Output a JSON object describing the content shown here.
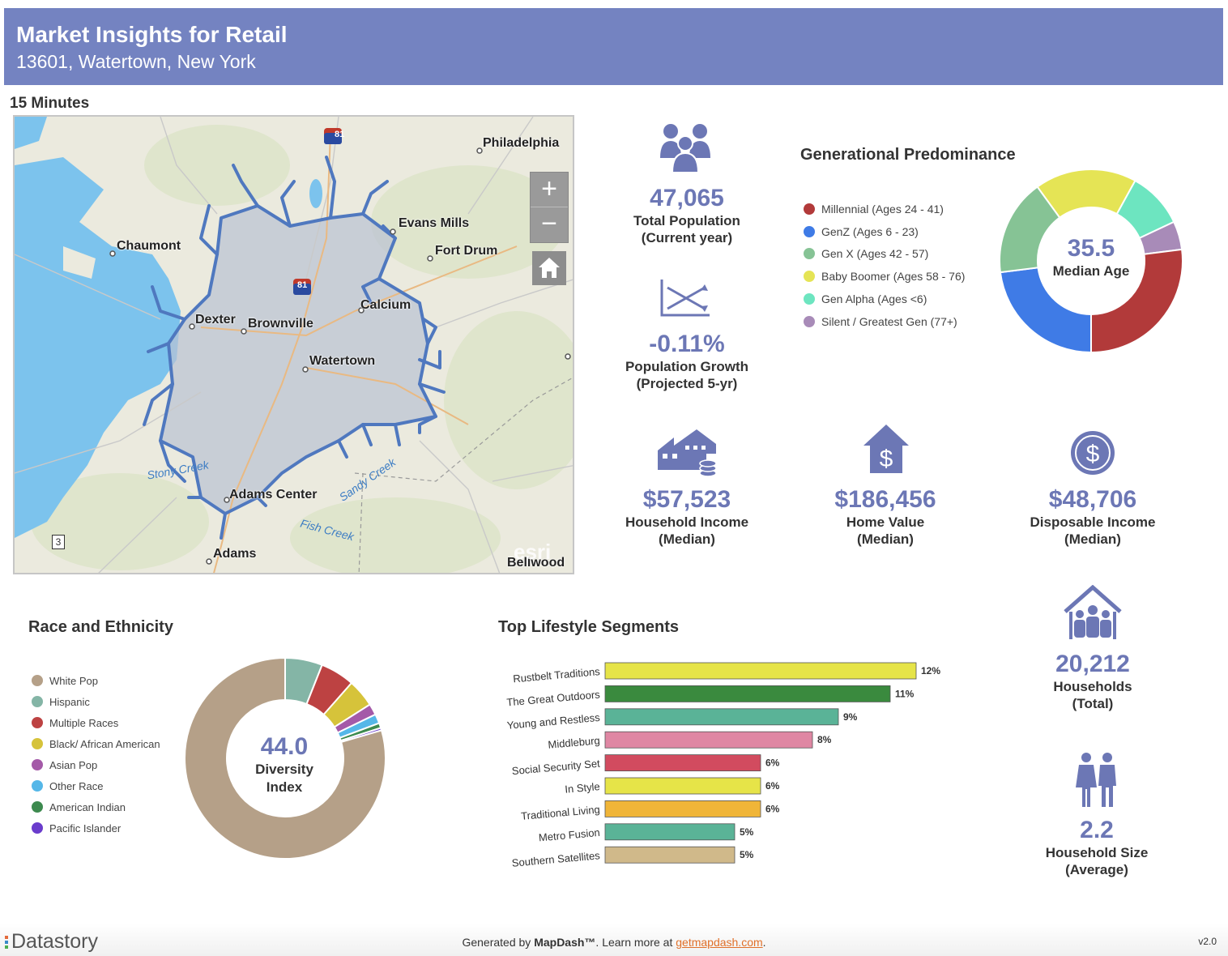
{
  "header": {
    "title": "Market Insights for Retail",
    "subtitle": "13601, Watertown, New York"
  },
  "drive_time": "15 Minutes",
  "map": {
    "places": [
      "Philadelphia",
      "Evans Mills",
      "Fort Drum",
      "Chaumont",
      "Calcium",
      "Dexter",
      "Brownville",
      "Watertown",
      "Adams Center",
      "Adams",
      "Bellwood"
    ],
    "water": [
      "Stony Creek",
      "Sandy Creek",
      "Fish Creek"
    ],
    "shields": [
      "81",
      "81",
      "3"
    ],
    "attribution": "esri",
    "zoom_in": "+",
    "zoom_out": "−"
  },
  "stats": {
    "population": {
      "value": "47,065",
      "label1": "Total Population",
      "label2": "(Current year)"
    },
    "growth": {
      "value": "-0.11%",
      "label1": "Population Growth",
      "label2": "(Projected 5-yr)"
    },
    "household_income": {
      "value": "$57,523",
      "label1": "Household Income",
      "label2": "(Median)"
    },
    "home_value": {
      "value": "$186,456",
      "label1": "Home Value",
      "label2": "(Median)"
    },
    "disposable_income": {
      "value": "$48,706",
      "label1": "Disposable Income",
      "label2": "(Median)"
    },
    "households": {
      "value": "20,212",
      "label1": "Households",
      "label2": "(Total)"
    },
    "household_size": {
      "value": "2.2",
      "label1": "Household Size",
      "label2": "(Average)"
    }
  },
  "generational": {
    "title": "Generational Predominance",
    "center_value": "35.5",
    "center_label": "Median Age",
    "legend": [
      {
        "label": "Millennial (Ages 24 - 41)",
        "color": "#b23a3a"
      },
      {
        "label": "GenZ (Ages 6 - 23)",
        "color": "#3f7be6"
      },
      {
        "label": "Gen X (Ages 42 - 57)",
        "color": "#86c395"
      },
      {
        "label": "Baby Boomer (Ages 58 - 76)",
        "color": "#e5e455"
      },
      {
        "label": "Gen Alpha (Ages <6)",
        "color": "#6de5c0"
      },
      {
        "label": "Silent / Greatest Gen (77+)",
        "color": "#a88bb8"
      }
    ]
  },
  "race": {
    "title": "Race and Ethnicity",
    "center_value": "44.0",
    "center_label1": "Diversity",
    "center_label2": "Index",
    "legend": [
      {
        "label": "White Pop",
        "color": "#b5a088"
      },
      {
        "label": "Hispanic",
        "color": "#84b5a6"
      },
      {
        "label": "Multiple Races",
        "color": "#bd4242"
      },
      {
        "label": "Black/ African American",
        "color": "#d6c33a"
      },
      {
        "label": "Asian Pop",
        "color": "#a45aa8"
      },
      {
        "label": "Other Race",
        "color": "#55b7e8"
      },
      {
        "label": "American Indian",
        "color": "#3d8a4f"
      },
      {
        "label": "Pacific Islander",
        "color": "#6a3ccc"
      }
    ]
  },
  "lifestyle": {
    "title": "Top Lifestyle Segments"
  },
  "chart_data": [
    {
      "type": "pie",
      "title": "Generational Predominance",
      "categories": [
        "Millennial (Ages 24 - 41)",
        "GenZ (Ages 6 - 23)",
        "Gen X (Ages 42 - 57)",
        "Baby Boomer (Ages 58 - 76)",
        "Gen Alpha (Ages <6)",
        "Silent / Greatest Gen (77+)"
      ],
      "values": [
        27,
        23,
        17,
        18,
        10,
        5
      ],
      "start_category": "Baby Boomer (Ages 58 - 76)",
      "order": [
        3,
        4,
        5,
        0,
        1,
        2
      ]
    },
    {
      "type": "pie",
      "title": "Race and Ethnicity",
      "categories": [
        "White Pop",
        "Hispanic",
        "Multiple Races",
        "Black/ African American",
        "Asian Pop",
        "Other Race",
        "American Indian",
        "Pacific Islander"
      ],
      "values": [
        79.5,
        6,
        5.5,
        4.5,
        1.8,
        1.5,
        0.8,
        0.4
      ],
      "order": [
        1,
        2,
        3,
        4,
        5,
        6,
        7,
        0
      ]
    },
    {
      "type": "bar",
      "orientation": "horizontal",
      "title": "Top Lifestyle Segments",
      "categories": [
        "Rustbelt Traditions",
        "The Great Outdoors",
        "Young and Restless",
        "Middleburg",
        "Social Security Set",
        "In Style",
        "Traditional Living",
        "Metro Fusion",
        "Southern Satellites"
      ],
      "values": [
        12,
        11,
        9,
        8,
        6,
        6,
        6,
        5,
        5
      ],
      "value_labels": [
        "12%",
        "11%",
        "9%",
        "8%",
        "6%",
        "6%",
        "6%",
        "5%",
        "5%"
      ],
      "colors": [
        "#e6e448",
        "#3a8a3e",
        "#5ab397",
        "#df87a3",
        "#d24b5f",
        "#e6e448",
        "#f0b538",
        "#5ab397",
        "#d0b98a"
      ],
      "xlim": [
        0,
        12.5
      ]
    }
  ],
  "footer": {
    "brand": "Datastory",
    "gen_prefix": "Generated by ",
    "gen_product": "MapDash™",
    "gen_middle": ".  Learn more at ",
    "gen_link": "getmapdash.com",
    "gen_suffix": ".",
    "version": "v2.0"
  }
}
